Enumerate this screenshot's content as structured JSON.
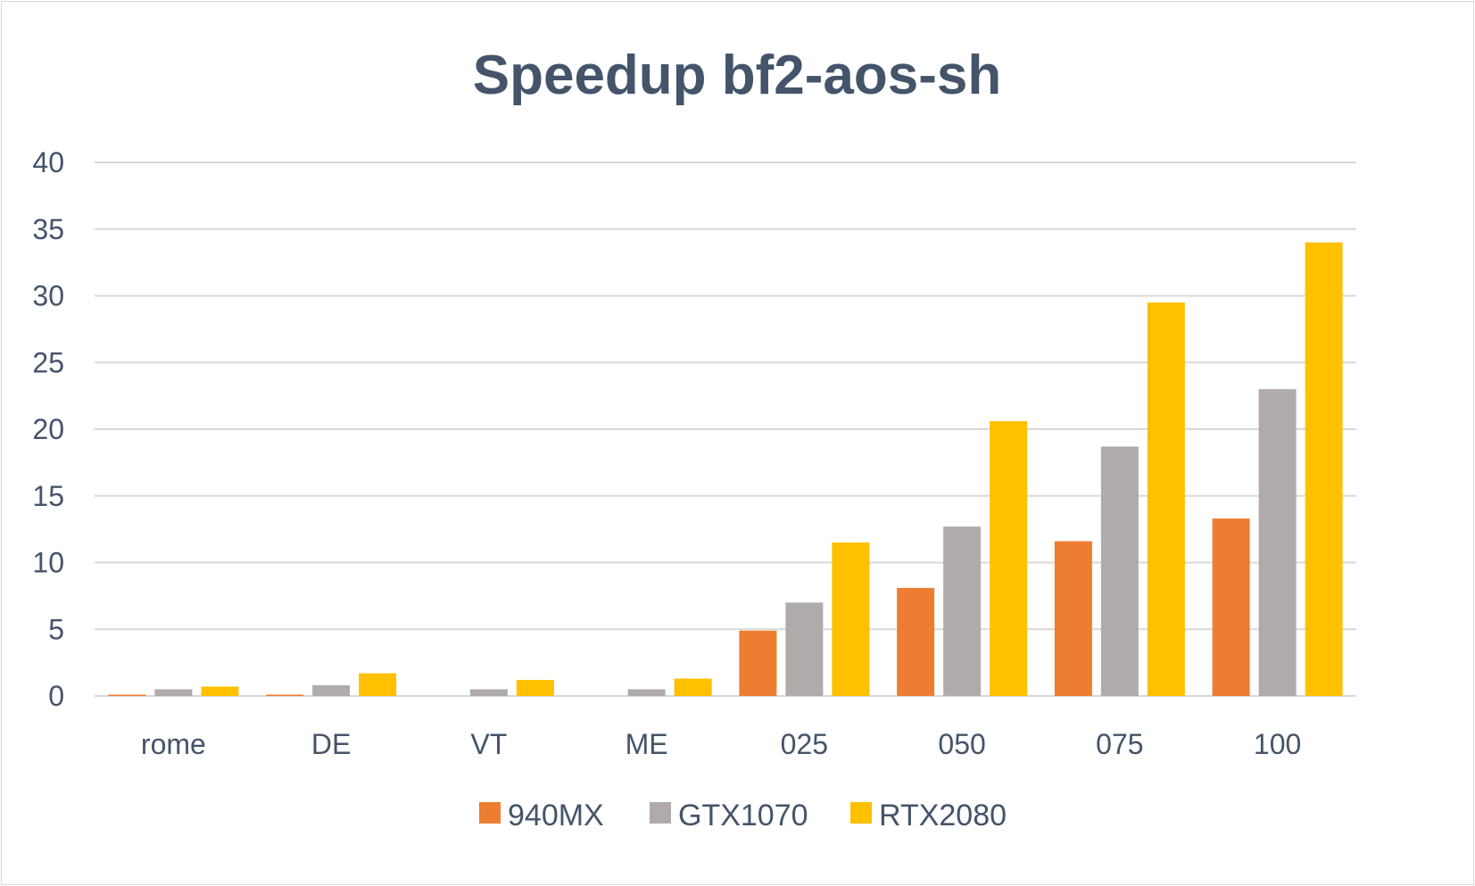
{
  "chart_data": {
    "type": "bar",
    "title": "Speedup bf2-aos-sh",
    "xlabel": "",
    "ylabel": "",
    "categories": [
      "rome",
      "DE",
      "VT",
      "ME",
      "025",
      "050",
      "075",
      "100"
    ],
    "series": [
      {
        "name": "940MX",
        "color": "#ed7d31",
        "values": [
          0.1,
          0.1,
          0,
          0,
          4.9,
          8.1,
          11.6,
          13.3
        ]
      },
      {
        "name": "GTX1070",
        "color": "#afabab",
        "values": [
          0.5,
          0.8,
          0.5,
          0.5,
          7.0,
          12.7,
          18.7,
          23.0
        ]
      },
      {
        "name": "RTX2080",
        "color": "#ffc000",
        "values": [
          0.7,
          1.7,
          1.2,
          1.3,
          11.5,
          20.6,
          29.5,
          34.0
        ]
      }
    ],
    "ylim": [
      0,
      40
    ],
    "yticks": [
      0,
      5,
      10,
      15,
      20,
      25,
      30,
      35,
      40
    ],
    "grid": true,
    "legend_position": "bottom"
  }
}
